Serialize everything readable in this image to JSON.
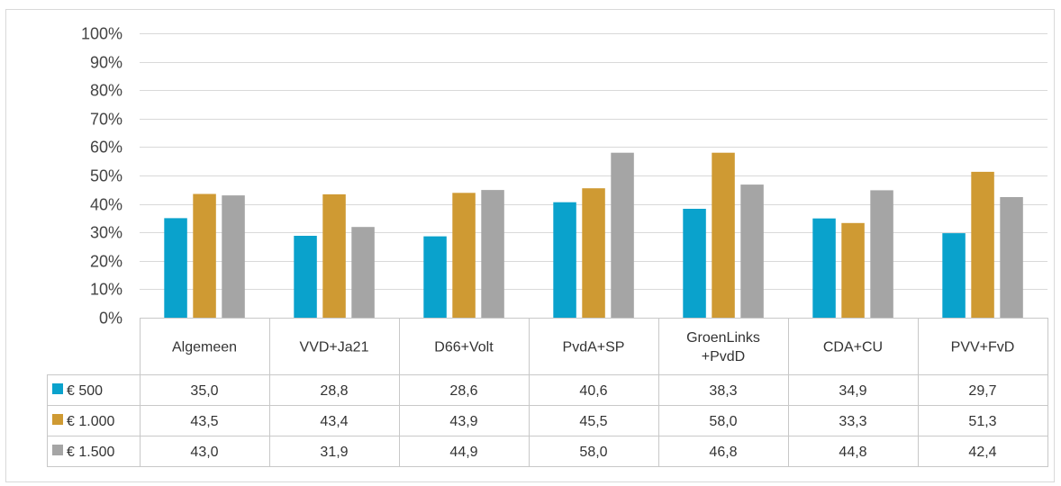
{
  "chart_data": {
    "type": "bar",
    "categories": [
      "Algemeen",
      "VVD+Ja21",
      "D66+Volt",
      "PvdA+SP",
      "GroenLinks +PvdD",
      "CDA+CU",
      "PVV+FvD"
    ],
    "category_lines": [
      [
        "Algemeen"
      ],
      [
        "VVD+Ja21"
      ],
      [
        "D66+Volt"
      ],
      [
        "PvdA+SP"
      ],
      [
        "GroenLinks",
        "+PvdD"
      ],
      [
        "CDA+CU"
      ],
      [
        "PVV+FvD"
      ]
    ],
    "series": [
      {
        "name": "€ 500",
        "color": "#0aa2cc",
        "values": [
          35.0,
          28.8,
          28.6,
          40.6,
          38.3,
          34.9,
          29.7
        ],
        "labels": [
          "35,0",
          "28,8",
          "28,6",
          "40,6",
          "38,3",
          "34,9",
          "29,7"
        ]
      },
      {
        "name": "€ 1.000",
        "color": "#cf9a33",
        "values": [
          43.5,
          43.4,
          43.9,
          45.5,
          58.0,
          33.3,
          51.3
        ],
        "labels": [
          "43,5",
          "43,4",
          "43,9",
          "45,5",
          "58,0",
          "33,3",
          "51,3"
        ]
      },
      {
        "name": "€ 1.500",
        "color": "#a5a5a5",
        "values": [
          43.0,
          31.9,
          44.9,
          58.0,
          46.8,
          44.8,
          42.4
        ],
        "labels": [
          "43,0",
          "31,9",
          "44,9",
          "58,0",
          "46,8",
          "44,8",
          "42,4"
        ]
      }
    ],
    "ylim": [
      0,
      100
    ],
    "yticks": [
      0,
      10,
      20,
      30,
      40,
      50,
      60,
      70,
      80,
      90,
      100
    ],
    "ytick_labels": [
      "0%",
      "10%",
      "20%",
      "30%",
      "40%",
      "50%",
      "60%",
      "70%",
      "80%",
      "90%",
      "100%"
    ],
    "grid": true,
    "legend": "data-table-left"
  }
}
